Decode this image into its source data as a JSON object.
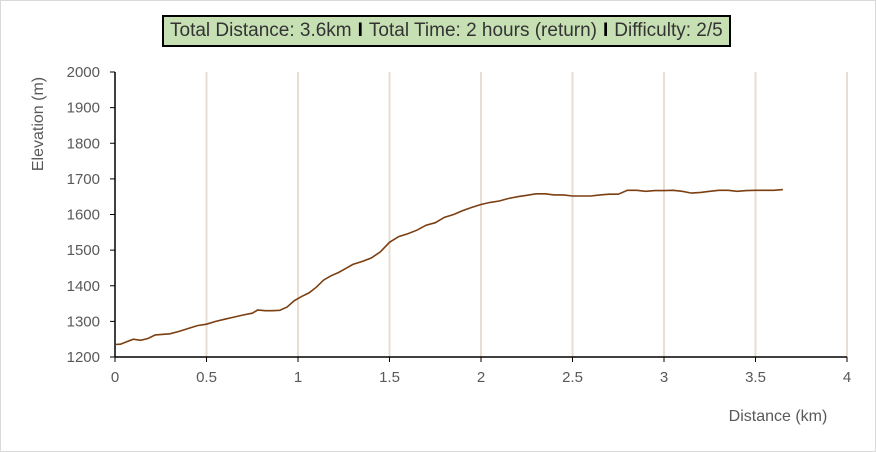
{
  "header": {
    "distance": "Total Distance: 3.6km",
    "time": "Total Time: 2 hours (return)",
    "difficulty": "Difficulty: 2/5",
    "separator": "I"
  },
  "chart_data": {
    "type": "line",
    "title": "",
    "xlabel": "Distance (km)",
    "ylabel": "Elevation (m)",
    "xlim": [
      0,
      4
    ],
    "ylim": [
      1200,
      2000
    ],
    "x_ticks": [
      "0",
      "0.5",
      "1",
      "1.5",
      "2",
      "2.5",
      "3",
      "3.5",
      "4"
    ],
    "y_ticks": [
      "1200",
      "1300",
      "1400",
      "1500",
      "1600",
      "1700",
      "1800",
      "1900",
      "2000"
    ],
    "vertical_grid": true,
    "horizontal_grid": false,
    "line_color": "#7b3f12",
    "grid_color": "#e8ddd0",
    "series": [
      {
        "x": [
          0,
          0.03,
          0.06,
          0.1,
          0.14,
          0.18,
          0.22,
          0.3,
          0.35,
          0.4,
          0.45,
          0.5,
          0.55,
          0.6,
          0.65,
          0.7,
          0.75,
          0.78,
          0.82,
          0.86,
          0.9,
          0.94,
          0.98,
          1.02,
          1.06,
          1.1,
          1.14,
          1.18,
          1.22,
          1.26,
          1.3,
          1.35,
          1.4,
          1.45,
          1.5,
          1.55,
          1.6,
          1.65,
          1.7,
          1.75,
          1.8,
          1.85,
          1.9,
          1.95,
          2.0,
          2.05,
          2.1,
          2.15,
          2.2,
          2.25,
          2.3,
          2.35,
          2.4,
          2.45,
          2.5,
          2.55,
          2.6,
          2.65,
          2.7,
          2.75,
          2.8,
          2.85,
          2.9,
          2.95,
          3.0,
          3.05,
          3.1,
          3.15,
          3.2,
          3.25,
          3.3,
          3.35,
          3.4,
          3.45,
          3.5,
          3.55,
          3.6,
          3.65
        ],
        "values": [
          1235,
          1236,
          1242,
          1250,
          1247,
          1252,
          1262,
          1265,
          1272,
          1280,
          1288,
          1292,
          1300,
          1306,
          1312,
          1318,
          1323,
          1332,
          1330,
          1330,
          1331,
          1340,
          1358,
          1370,
          1380,
          1396,
          1416,
          1428,
          1437,
          1448,
          1460,
          1468,
          1478,
          1495,
          1522,
          1538,
          1546,
          1556,
          1570,
          1577,
          1592,
          1600,
          1611,
          1620,
          1628,
          1634,
          1638,
          1645,
          1650,
          1654,
          1658,
          1658,
          1655,
          1655,
          1652,
          1652,
          1652,
          1655,
          1657,
          1657,
          1668,
          1668,
          1665,
          1667,
          1667,
          1668,
          1665,
          1660,
          1662,
          1665,
          1668,
          1668,
          1665,
          1667,
          1668,
          1668,
          1668,
          1670
        ]
      }
    ]
  }
}
